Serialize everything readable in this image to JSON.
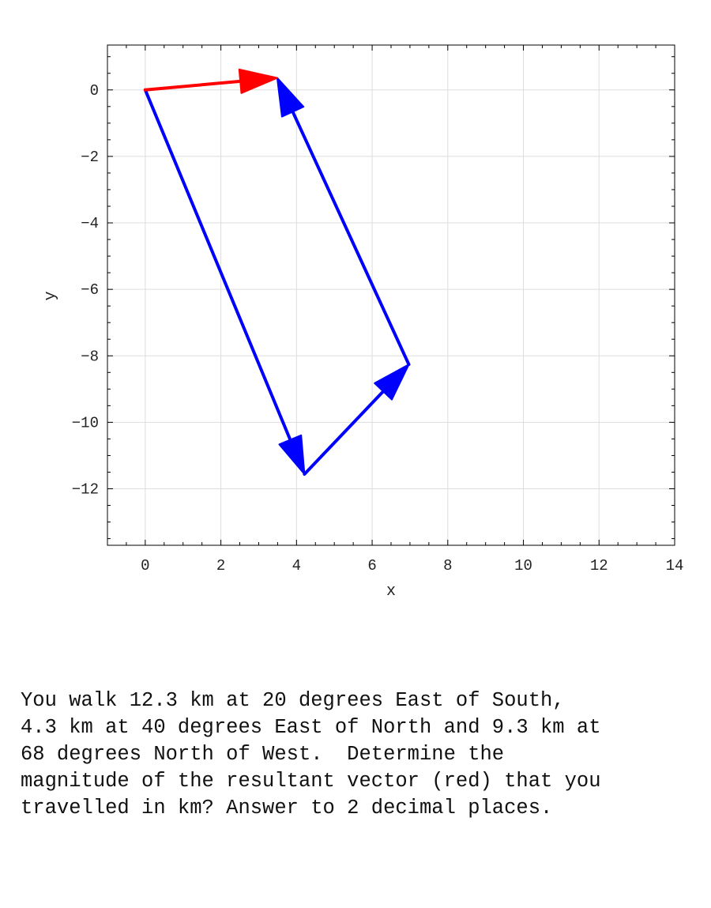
{
  "chart_data": {
    "type": "vector-diagram",
    "xlabel": "x",
    "ylabel": "y",
    "xlim": [
      -1,
      14
    ],
    "ylim": [
      -13.7,
      1.35
    ],
    "xticks": [
      0,
      2,
      4,
      6,
      8,
      10,
      12,
      14
    ],
    "yticks": [
      0,
      -2,
      -4,
      -6,
      -8,
      -10,
      -12
    ],
    "grid": true,
    "vectors": [
      {
        "from": [
          0,
          0
        ],
        "to": [
          4.21,
          -11.56
        ],
        "color": "#0000ff"
      },
      {
        "from": [
          4.21,
          -11.56
        ],
        "to": [
          6.97,
          -8.26
        ],
        "color": "#0000ff"
      },
      {
        "from": [
          6.97,
          -8.26
        ],
        "to": [
          3.49,
          0.36
        ],
        "color": "#0000ff"
      },
      {
        "from": [
          0,
          0
        ],
        "to": [
          3.49,
          0.36
        ],
        "color": "#ff0000"
      }
    ]
  },
  "question": "You walk 12.3 km at 20 degrees East of South,\n4.3 km at 40 degrees East of North and 9.3 km at\n68 degrees North of West.  Determine the\nmagnitude of the resultant vector (red) that you\ntravelled in km? Answer to 2 decimal places."
}
